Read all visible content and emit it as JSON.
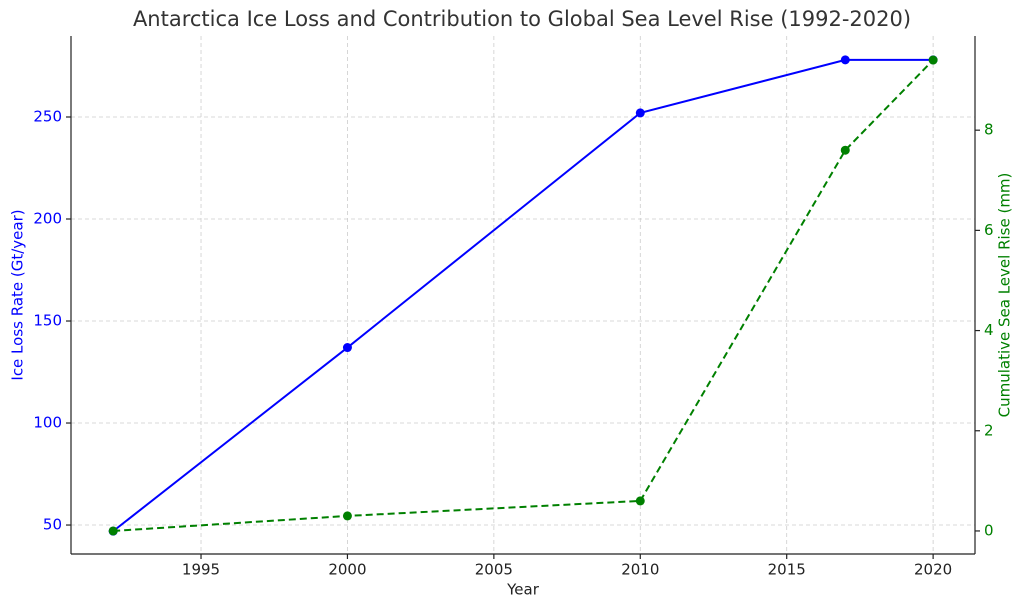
{
  "chart_data": {
    "type": "line",
    "title": "Antarctica Ice Loss and Contribution to Global Sea Level Rise (1992-2020)",
    "xlabel": "Year",
    "ylabel": "Ice Loss Rate (Gt/year)",
    "y2label": "Cumulative Sea Level Rise (mm)",
    "x": [
      1992,
      2000,
      2010,
      2017,
      2020
    ],
    "series": [
      {
        "color": "#0000ff",
        "linestyle": "solid",
        "values": [
          47,
          137,
          252,
          278,
          278
        ]
      },
      {
        "color": "#008000",
        "linestyle": "dashed",
        "axis": "y2",
        "values": [
          0,
          0.3,
          0.6,
          7.6,
          9.4
        ]
      }
    ],
    "xlim": [
      1990.56,
      2021.43
    ],
    "xticks": [
      1995,
      2000,
      2005,
      2010,
      2015,
      2020
    ],
    "ylim": [
      35.8,
      289.7
    ],
    "yticks": [
      50,
      100,
      150,
      200,
      250
    ],
    "y2lim": [
      -0.46,
      9.88
    ],
    "y2ticks": [
      0,
      2,
      4,
      6,
      8
    ],
    "grid": true
  }
}
